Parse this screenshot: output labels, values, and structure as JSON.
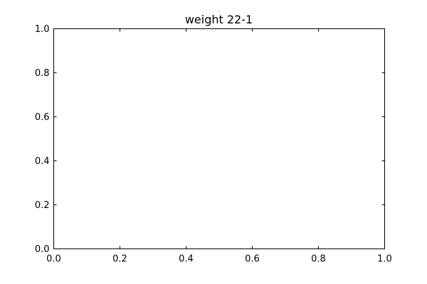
{
  "chart_data": {
    "type": "line",
    "title": "weight 22-1",
    "xlabel": "",
    "ylabel": "",
    "series": [],
    "xlim": [
      0.0,
      1.0
    ],
    "ylim": [
      0.0,
      1.0
    ],
    "x_ticks": [
      "0.0",
      "0.2",
      "0.4",
      "0.6",
      "0.8",
      "1.0"
    ],
    "y_ticks": [
      "0.0",
      "0.2",
      "0.4",
      "0.6",
      "0.8",
      "1.0"
    ],
    "grid": false,
    "legend": null
  }
}
